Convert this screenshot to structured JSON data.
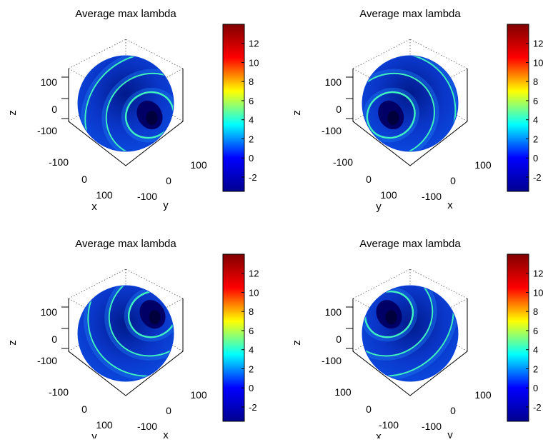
{
  "figure": {
    "chart_data": [
      {
        "type": "heatmap",
        "title": "Average max lambda",
        "xlabel": "x",
        "ylabel": "y",
        "zlabel": "z",
        "ground_axes": [
          {
            "label": "x",
            "ticks": [
              "-100",
              "0",
              "100"
            ]
          },
          {
            "label": "y",
            "ticks": [
              "100",
              "0",
              "-100"
            ]
          }
        ],
        "z_ticks": [
          "100",
          "0",
          "-100"
        ],
        "colorbar": {
          "min": -3.5,
          "max": 14,
          "ticks": [
            "-2",
            "0",
            "2",
            "4",
            "6",
            "8",
            "10",
            "12"
          ]
        },
        "hotspot": "right",
        "view": 1
      },
      {
        "type": "heatmap",
        "title": "Average max lambda",
        "xlabel": "x",
        "ylabel": "y",
        "zlabel": "z",
        "ground_axes": [
          {
            "label": "y",
            "ticks": [
              "-100",
              "0",
              "100"
            ]
          },
          {
            "label": "x",
            "ticks": [
              "100",
              "0",
              "-100"
            ]
          }
        ],
        "z_ticks": [
          "100",
          "0",
          "-100"
        ],
        "colorbar": {
          "min": -3.5,
          "max": 14,
          "ticks": [
            "-2",
            "0",
            "2",
            "4",
            "6",
            "8",
            "10",
            "12"
          ]
        },
        "hotspot": "left",
        "view": 2
      },
      {
        "type": "heatmap",
        "title": "Average max lambda",
        "xlabel": "x",
        "ylabel": "y",
        "zlabel": "z",
        "ground_axes": [
          {
            "label": "y",
            "ticks": [
              "-100",
              "0",
              "100"
            ]
          },
          {
            "label": "x",
            "ticks": [
              "100",
              "0",
              "-100"
            ]
          }
        ],
        "z_ticks": [
          "100",
          "0",
          "-100"
        ],
        "colorbar": {
          "min": -3.5,
          "max": 14,
          "ticks": [
            "-2",
            "0",
            "2",
            "4",
            "6",
            "8",
            "10",
            "12"
          ]
        },
        "hotspot": "upper-right",
        "view": 3
      },
      {
        "type": "heatmap",
        "title": "Average max lambda",
        "xlabel": "x",
        "ylabel": "y",
        "zlabel": "z",
        "ground_axes": [
          {
            "label": "x",
            "ticks": [
              "100",
              "0",
              "-100"
            ]
          },
          {
            "label": "y",
            "ticks": [
              "100",
              "0",
              "-100"
            ]
          }
        ],
        "z_ticks": [
          "100",
          "0",
          "-100"
        ],
        "colorbar": {
          "min": -3.5,
          "max": 14,
          "ticks": [
            "-2",
            "0",
            "2",
            "4",
            "6",
            "8",
            "10",
            "12"
          ]
        },
        "hotspot": "upper-left",
        "view": 4
      }
    ],
    "colormap": [
      "#00008f",
      "#0000ff",
      "#00ffff",
      "#ffff00",
      "#ff0000",
      "#800000"
    ],
    "colors": {
      "sphere_dark": "#001a8c",
      "sphere_base": "#0a4ae0",
      "stripe": "#3ff0c0"
    }
  }
}
